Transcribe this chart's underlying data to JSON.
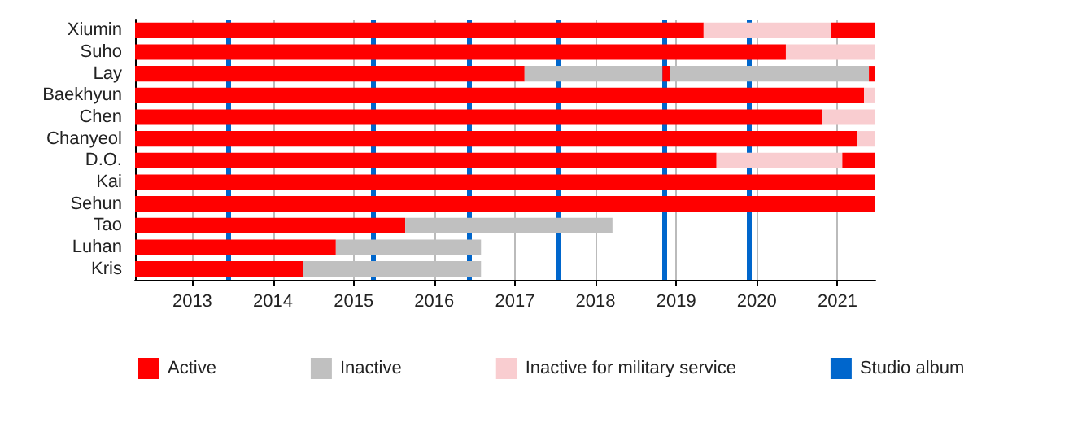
{
  "chart_data": {
    "type": "bar",
    "orientation": "horizontal",
    "categories": [
      "Xiumin",
      "Suho",
      "Lay",
      "Baekhyun",
      "Chen",
      "Chanyeol",
      "D.O.",
      "Kai",
      "Sehun",
      "Tao",
      "Luhan",
      "Kris"
    ],
    "series": [
      {
        "name": "Active",
        "color": "#ff0000",
        "base": [
          2012.29,
          2012.29,
          2012.29,
          2012.29,
          2012.29,
          2012.29,
          2012.29,
          2012.29,
          2012.29,
          2012.29,
          2012.29,
          2012.29
        ],
        "values": [
          7.05,
          8.07,
          4.83,
          9.04,
          8.52,
          8.95,
          7.21,
          9.18,
          9.18,
          3.35,
          2.49,
          2.08
        ]
      },
      {
        "name": "Inactive",
        "color": "#c0c0c0",
        "base": [
          null,
          null,
          2017.12,
          null,
          null,
          null,
          null,
          null,
          null,
          2015.64,
          2014.78,
          2014.37
        ],
        "values": [
          null,
          null,
          1.71,
          null,
          null,
          null,
          null,
          null,
          null,
          2.57,
          1.8,
          2.21
        ]
      },
      {
        "name": "Inactive for military service",
        "color": "#f9cdd0",
        "base": [
          2019.34,
          2020.36,
          null,
          2021.33,
          2020.81,
          2021.24,
          2019.5,
          null,
          null,
          null,
          null,
          null
        ],
        "values": [
          1.58,
          1.11,
          null,
          0.14,
          0.66,
          0.23,
          1.56,
          null,
          null,
          null,
          null,
          null
        ]
      },
      {
        "color": "#ff0000",
        "base": [
          2020.92,
          null,
          2018.83,
          null,
          null,
          null,
          2021.06,
          null,
          null,
          null,
          null,
          null
        ],
        "values": [
          0.55,
          null,
          0.09,
          null,
          null,
          null,
          0.41,
          null,
          null,
          null,
          null,
          null
        ]
      },
      {
        "color": "#c0c0c0",
        "base": [
          null,
          null,
          2018.92,
          null,
          null,
          null,
          null,
          null,
          null,
          null,
          null,
          null
        ],
        "values": [
          null,
          null,
          2.47,
          null,
          null,
          null,
          null,
          null,
          null,
          null,
          null,
          null
        ]
      },
      {
        "color": "#ff0000",
        "base": [
          null,
          null,
          2021.39,
          null,
          null,
          null,
          null,
          null,
          null,
          null,
          null,
          null
        ],
        "values": [
          null,
          null,
          0.08,
          null,
          null,
          null,
          null,
          null,
          null,
          null,
          null,
          null
        ]
      }
    ],
    "xlim": [
      2012.29,
      2021.47
    ],
    "xticks": [
      2013,
      2014,
      2015,
      2016,
      2017,
      2018,
      2019,
      2020,
      2021
    ],
    "ref_lines": [
      {
        "axis": "x",
        "value": 2013.44,
        "label": "Studio album",
        "color": "#0066cc"
      },
      {
        "axis": "x",
        "value": 2015.25,
        "color": "#0066cc"
      },
      {
        "axis": "x",
        "value": 2016.44,
        "color": "#0066cc"
      },
      {
        "axis": "x",
        "value": 2017.55,
        "color": "#0066cc"
      },
      {
        "axis": "x",
        "value": 2018.85,
        "color": "#0066cc"
      },
      {
        "axis": "x",
        "value": 2019.9,
        "color": "#0066cc"
      }
    ],
    "grid": "x",
    "legend": "bottom"
  }
}
